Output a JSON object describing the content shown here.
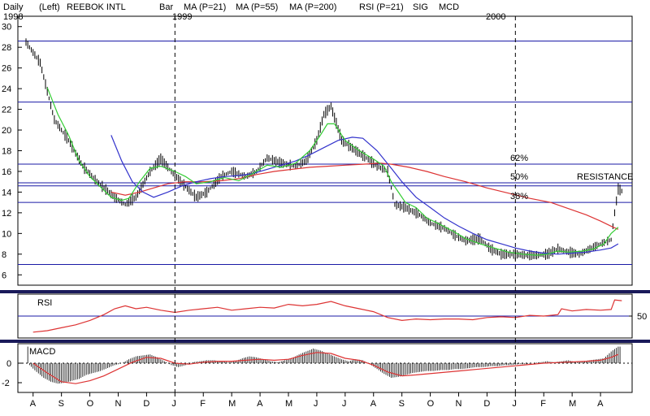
{
  "header": [
    {
      "text": "Daily",
      "color": "#000000"
    },
    {
      "text": "(Left)",
      "color": "#000000"
    },
    {
      "text": "REEBOK INTL",
      "color": "#000000"
    },
    {
      "text": "Bar",
      "color": "#000000"
    },
    {
      "text": "MA (P=21)",
      "color": "#33cc33"
    },
    {
      "text": "MA (P=55)",
      "color": "#3333cc"
    },
    {
      "text": "MA (P=200)",
      "color": "#dd3333"
    },
    {
      "text": "RSI (P=21)",
      "color": "#dd3333"
    },
    {
      "text": "SIG",
      "color": "#dd3333"
    },
    {
      "text": "MCD",
      "color": "#000000"
    }
  ],
  "years": [
    "1998",
    "1999",
    "2000"
  ],
  "colors": {
    "hline": "#1a1aa6",
    "divider": "#1a1aa6",
    "ma21": "#33cc33",
    "ma55": "#3333cc",
    "ma200": "#dd3333",
    "rsi": "#dd3333",
    "macd_sig": "#dd3333",
    "bars": "#000000"
  },
  "chart_data": {
    "type": "line",
    "price_panel": {
      "ylim": [
        5,
        31
      ],
      "y_ticks": [
        6,
        8,
        10,
        12,
        14,
        16,
        18,
        20,
        22,
        24,
        26,
        28,
        30
      ],
      "horizontal_lines": [
        7,
        13,
        14.6,
        14.9,
        16.7,
        22.7,
        28.6
      ],
      "annotations": [
        {
          "text": "62%",
          "price": 16.7
        },
        {
          "text": "50%",
          "price": 14.9
        },
        {
          "text": "38%",
          "price": 13.0
        },
        {
          "text": "RESISTANCE",
          "price": 14.9
        }
      ],
      "close_series": [
        [
          0,
          28.5
        ],
        [
          4,
          26.5
        ],
        [
          8,
          21
        ],
        [
          12,
          19
        ],
        [
          16,
          16.5
        ],
        [
          20,
          15
        ],
        [
          25,
          13.5
        ],
        [
          28,
          12.8
        ],
        [
          31,
          13.5
        ],
        [
          35,
          16
        ],
        [
          38,
          17.2
        ],
        [
          41,
          16
        ],
        [
          45,
          14.5
        ],
        [
          48,
          13.5
        ],
        [
          51,
          14
        ],
        [
          55,
          15.5
        ],
        [
          58,
          16
        ],
        [
          62,
          15.5
        ],
        [
          65,
          16
        ],
        [
          68,
          17.3
        ],
        [
          72,
          16.8
        ],
        [
          76,
          16.5
        ],
        [
          79,
          17
        ],
        [
          82,
          19
        ],
        [
          84,
          21.5
        ],
        [
          86,
          22.3
        ],
        [
          89,
          19
        ],
        [
          93,
          18
        ],
        [
          96,
          17.3
        ],
        [
          99,
          16.5
        ],
        [
          102,
          16
        ],
        [
          104,
          12.8
        ],
        [
          107,
          12.5
        ],
        [
          111,
          11.8
        ],
        [
          114,
          11
        ],
        [
          118,
          10.5
        ],
        [
          121,
          9.8
        ],
        [
          124,
          9.3
        ],
        [
          128,
          9.5
        ],
        [
          131,
          8.5
        ],
        [
          134,
          8
        ],
        [
          138,
          8
        ],
        [
          141,
          7.9
        ],
        [
          144,
          7.9
        ],
        [
          147,
          8
        ],
        [
          150,
          8.5
        ],
        [
          153,
          8.2
        ],
        [
          156,
          8
        ],
        [
          159,
          8.5
        ],
        [
          162,
          9
        ],
        [
          165,
          9.4
        ],
        [
          166,
          12
        ],
        [
          167,
          14.3
        ],
        [
          168,
          14.1
        ]
      ],
      "ma21": [
        [
          6,
          24.1
        ],
        [
          9,
          21.5
        ],
        [
          12,
          19.5
        ],
        [
          15,
          17
        ],
        [
          18,
          15.5
        ],
        [
          21,
          14.5
        ],
        [
          24,
          13.5
        ],
        [
          27,
          13.2
        ],
        [
          29,
          13.4
        ],
        [
          32,
          15
        ],
        [
          35,
          16.3
        ],
        [
          38,
          16.5
        ],
        [
          42,
          16
        ],
        [
          45,
          15.5
        ],
        [
          48,
          14.8
        ],
        [
          52,
          15
        ],
        [
          56,
          15.4
        ],
        [
          60,
          15.1
        ],
        [
          64,
          15.8
        ],
        [
          68,
          16.6
        ],
        [
          72,
          16.4
        ],
        [
          76,
          16.8
        ],
        [
          80,
          18
        ],
        [
          83,
          19.5
        ],
        [
          85,
          20.6
        ],
        [
          87,
          20.6
        ],
        [
          90,
          19
        ],
        [
          94,
          18
        ],
        [
          98,
          17.2
        ],
        [
          101,
          16.5
        ],
        [
          103,
          15
        ],
        [
          105,
          14
        ],
        [
          107,
          13
        ],
        [
          110,
          12.5
        ],
        [
          113,
          11.5
        ],
        [
          116,
          11
        ],
        [
          120,
          10.3
        ],
        [
          124,
          9.5
        ],
        [
          128,
          9
        ],
        [
          132,
          8.6
        ],
        [
          136,
          8.2
        ],
        [
          140,
          8
        ],
        [
          144,
          7.9
        ],
        [
          147,
          8
        ],
        [
          150,
          8.3
        ],
        [
          153,
          8.2
        ],
        [
          157,
          8.3
        ],
        [
          160,
          8.5
        ],
        [
          163,
          9
        ],
        [
          165,
          10
        ],
        [
          167,
          10.6
        ]
      ],
      "ma55": [
        [
          24,
          19.5
        ],
        [
          27,
          17
        ],
        [
          30,
          15
        ],
        [
          33,
          14
        ],
        [
          36,
          13.5
        ],
        [
          40,
          14
        ],
        [
          44,
          14.6
        ],
        [
          48,
          15
        ],
        [
          52,
          15.3
        ],
        [
          56,
          15.5
        ],
        [
          60,
          15.6
        ],
        [
          64,
          15.8
        ],
        [
          68,
          16.2
        ],
        [
          72,
          16.6
        ],
        [
          76,
          17
        ],
        [
          80,
          17.6
        ],
        [
          84,
          18.3
        ],
        [
          88,
          19
        ],
        [
          92,
          19.3
        ],
        [
          95,
          19.2
        ],
        [
          99,
          18
        ],
        [
          103,
          16.3
        ],
        [
          106,
          15
        ],
        [
          110,
          13.5
        ],
        [
          114,
          12.5
        ],
        [
          118,
          11.5
        ],
        [
          122,
          10.7
        ],
        [
          126,
          10
        ],
        [
          130,
          9.4
        ],
        [
          134,
          9
        ],
        [
          138,
          8.6
        ],
        [
          142,
          8.3
        ],
        [
          146,
          8.1
        ],
        [
          150,
          8
        ],
        [
          154,
          8.1
        ],
        [
          158,
          8.2
        ],
        [
          162,
          8.4
        ],
        [
          165,
          8.6
        ],
        [
          167,
          9
        ]
      ],
      "ma200": [
        [
          24,
          14
        ],
        [
          28,
          13.7
        ],
        [
          32,
          14
        ],
        [
          36,
          14.4
        ],
        [
          40,
          14.8
        ],
        [
          45,
          15
        ],
        [
          50,
          15
        ],
        [
          55,
          15.1
        ],
        [
          60,
          15.3
        ],
        [
          65,
          15.7
        ],
        [
          70,
          16
        ],
        [
          75,
          16.2
        ],
        [
          80,
          16.4
        ],
        [
          85,
          16.5
        ],
        [
          90,
          16.6
        ],
        [
          95,
          16.7
        ],
        [
          100,
          16.8
        ],
        [
          103,
          16.7
        ],
        [
          108,
          16.4
        ],
        [
          113,
          16
        ],
        [
          118,
          15.5
        ],
        [
          124,
          15
        ],
        [
          130,
          14.4
        ],
        [
          136,
          13.9
        ],
        [
          142,
          13.4
        ],
        [
          148,
          13
        ],
        [
          153,
          12.4
        ],
        [
          158,
          11.8
        ],
        [
          162,
          11.2
        ],
        [
          165,
          10.7
        ],
        [
          167,
          10.4
        ]
      ]
    },
    "rsi_panel": {
      "label": "RSI",
      "tick_label": "50",
      "ylim": [
        20,
        80
      ],
      "level": 50,
      "series": [
        [
          2,
          28
        ],
        [
          6,
          30
        ],
        [
          10,
          34
        ],
        [
          14,
          38
        ],
        [
          18,
          44
        ],
        [
          22,
          52
        ],
        [
          25,
          60
        ],
        [
          28,
          64
        ],
        [
          31,
          60
        ],
        [
          34,
          62
        ],
        [
          38,
          58
        ],
        [
          42,
          55
        ],
        [
          46,
          58
        ],
        [
          50,
          60
        ],
        [
          54,
          62
        ],
        [
          58,
          58
        ],
        [
          62,
          60
        ],
        [
          66,
          62
        ],
        [
          70,
          61
        ],
        [
          74,
          66
        ],
        [
          78,
          64
        ],
        [
          82,
          66
        ],
        [
          86,
          70
        ],
        [
          90,
          64
        ],
        [
          94,
          60
        ],
        [
          98,
          56
        ],
        [
          102,
          48
        ],
        [
          106,
          44
        ],
        [
          110,
          46
        ],
        [
          114,
          45
        ],
        [
          118,
          46
        ],
        [
          122,
          46
        ],
        [
          126,
          45
        ],
        [
          130,
          48
        ],
        [
          134,
          49
        ],
        [
          138,
          48
        ],
        [
          142,
          51
        ],
        [
          146,
          50
        ],
        [
          150,
          52
        ],
        [
          151,
          60
        ],
        [
          154,
          57
        ],
        [
          158,
          59
        ],
        [
          162,
          58
        ],
        [
          165,
          59
        ],
        [
          166,
          72
        ],
        [
          168,
          71
        ]
      ]
    },
    "macd_panel": {
      "label": "MACD",
      "ylim": [
        -3,
        2
      ],
      "y_ticks": [
        -2,
        0
      ],
      "histogram": [
        [
          1,
          -0.2
        ],
        [
          3,
          -0.9
        ],
        [
          5,
          -1.5
        ],
        [
          7,
          -1.9
        ],
        [
          9,
          -2.1
        ],
        [
          11,
          -2
        ],
        [
          13,
          -1.8
        ],
        [
          15,
          -1.6
        ],
        [
          17,
          -1.2
        ],
        [
          19,
          -1
        ],
        [
          21,
          -0.8
        ],
        [
          23,
          -0.5
        ],
        [
          25,
          -0.2
        ],
        [
          27,
          0
        ],
        [
          29,
          0.4
        ],
        [
          31,
          0.7
        ],
        [
          33,
          0.8
        ],
        [
          35,
          0.9
        ],
        [
          37,
          0.6
        ],
        [
          39,
          0.2
        ],
        [
          41,
          -0.2
        ],
        [
          43,
          -0.4
        ],
        [
          45,
          -0.2
        ],
        [
          47,
          0.1
        ],
        [
          49,
          0.2
        ],
        [
          51,
          0.3
        ],
        [
          53,
          0.3
        ],
        [
          55,
          0.2
        ],
        [
          57,
          0.1
        ],
        [
          59,
          0.2
        ],
        [
          61,
          0.5
        ],
        [
          63,
          0.7
        ],
        [
          65,
          0.6
        ],
        [
          67,
          0.4
        ],
        [
          69,
          0.2
        ],
        [
          71,
          0.1
        ],
        [
          73,
          0.3
        ],
        [
          75,
          0.5
        ],
        [
          77,
          0.9
        ],
        [
          79,
          1.2
        ],
        [
          81,
          1.5
        ],
        [
          83,
          1.3
        ],
        [
          85,
          1
        ],
        [
          87,
          0.7
        ],
        [
          89,
          0.4
        ],
        [
          91,
          0.2
        ],
        [
          93,
          0.4
        ],
        [
          95,
          0.3
        ],
        [
          97,
          -0.1
        ],
        [
          99,
          -0.6
        ],
        [
          101,
          -1.1
        ],
        [
          103,
          -1.5
        ],
        [
          105,
          -1.4
        ],
        [
          107,
          -1.2
        ],
        [
          109,
          -1
        ],
        [
          111,
          -0.9
        ],
        [
          113,
          -0.8
        ],
        [
          115,
          -0.8
        ],
        [
          117,
          -0.7
        ],
        [
          119,
          -0.7
        ],
        [
          121,
          -0.6
        ],
        [
          123,
          -0.6
        ],
        [
          125,
          -0.5
        ],
        [
          127,
          -0.4
        ],
        [
          129,
          -0.4
        ],
        [
          131,
          -0.3
        ],
        [
          133,
          -0.3
        ],
        [
          135,
          -0.2
        ],
        [
          137,
          -0.2
        ],
        [
          139,
          -0.1
        ],
        [
          141,
          -0.1
        ],
        [
          143,
          0
        ],
        [
          145,
          0.1
        ],
        [
          147,
          0.2
        ],
        [
          149,
          0.1
        ],
        [
          151,
          0.2
        ],
        [
          153,
          0.3
        ],
        [
          155,
          0.1
        ],
        [
          157,
          0.2
        ],
        [
          159,
          0.3
        ],
        [
          161,
          0.4
        ],
        [
          163,
          0.5
        ],
        [
          165,
          1.2
        ],
        [
          167,
          1.7
        ]
      ],
      "signal": [
        [
          2,
          0
        ],
        [
          6,
          -1
        ],
        [
          10,
          -1.9
        ],
        [
          14,
          -2.1
        ],
        [
          18,
          -1.8
        ],
        [
          22,
          -1.3
        ],
        [
          26,
          -0.6
        ],
        [
          30,
          0.1
        ],
        [
          34,
          0.6
        ],
        [
          38,
          0.5
        ],
        [
          42,
          0
        ],
        [
          46,
          -0.1
        ],
        [
          50,
          0.1
        ],
        [
          54,
          0.2
        ],
        [
          58,
          0.2
        ],
        [
          62,
          0.3
        ],
        [
          66,
          0.4
        ],
        [
          70,
          0.3
        ],
        [
          74,
          0.4
        ],
        [
          78,
          0.8
        ],
        [
          82,
          1.1
        ],
        [
          86,
          1
        ],
        [
          90,
          0.5
        ],
        [
          94,
          0.3
        ],
        [
          98,
          -0.2
        ],
        [
          102,
          -0.9
        ],
        [
          106,
          -1.3
        ],
        [
          110,
          -1.2
        ],
        [
          116,
          -1
        ],
        [
          122,
          -0.8
        ],
        [
          128,
          -0.6
        ],
        [
          134,
          -0.4
        ],
        [
          140,
          -0.2
        ],
        [
          146,
          0
        ],
        [
          152,
          0.1
        ],
        [
          158,
          0.2
        ],
        [
          162,
          0.3
        ],
        [
          165,
          0.6
        ],
        [
          167,
          0.9
        ]
      ]
    },
    "x_axis": {
      "labels": [
        "A",
        "S",
        "O",
        "N",
        "D",
        "J",
        "F",
        "M",
        "A",
        "M",
        "J",
        "J",
        "A",
        "S",
        "O",
        "N",
        "D",
        "J",
        "F",
        "M",
        "A"
      ],
      "label_positions": [
        2,
        10,
        18,
        26,
        34,
        42,
        50,
        58,
        66,
        74,
        82,
        90,
        98,
        106,
        114,
        122,
        130,
        138,
        146,
        154,
        162
      ],
      "year_dividers": [
        42,
        138
      ],
      "xlim": [
        0,
        170
      ]
    }
  }
}
